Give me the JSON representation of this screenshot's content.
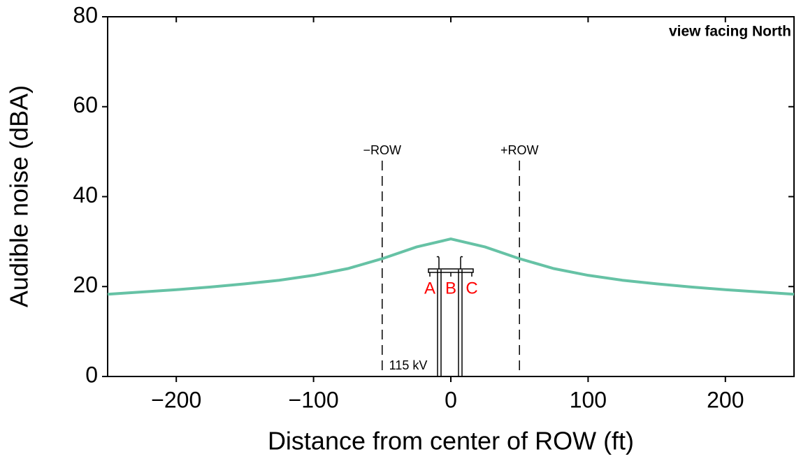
{
  "chart_data": {
    "type": "line",
    "xlabel": "Distance from center of ROW (ft)",
    "ylabel": "Audible noise (dBA)",
    "x": [
      -250,
      -225,
      -200,
      -175,
      -150,
      -125,
      -100,
      -75,
      -50,
      -25,
      0,
      25,
      50,
      75,
      100,
      125,
      150,
      175,
      200,
      225,
      250
    ],
    "series": [
      {
        "color": "#66c2a5",
        "values": [
          18.3,
          18.8,
          19.3,
          19.9,
          20.6,
          21.4,
          22.5,
          24.0,
          26.2,
          28.8,
          30.6,
          28.8,
          26.2,
          24.0,
          22.5,
          21.4,
          20.6,
          19.9,
          19.3,
          18.8,
          18.3
        ]
      }
    ],
    "xlim": [
      -250,
      250
    ],
    "ylim": [
      0,
      80
    ],
    "xticks": [
      {
        "value": -200,
        "label": "−200"
      },
      {
        "value": -100,
        "label": "−100"
      },
      0,
      100,
      200
    ],
    "yticks": [
      0,
      20,
      40,
      60,
      80
    ],
    "row_lines": [
      {
        "label": "−ROW",
        "x": -50
      },
      {
        "label": "+ROW",
        "x": 50
      }
    ],
    "annotations": {
      "view": "view facing North",
      "voltage": "115 kV",
      "phases": [
        "A",
        "B",
        "C"
      ]
    }
  }
}
